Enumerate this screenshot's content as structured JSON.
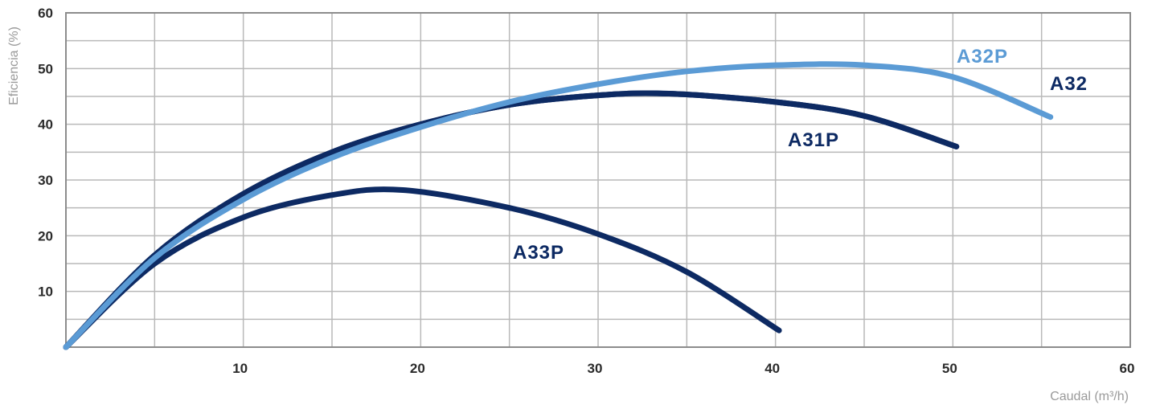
{
  "chart_data": {
    "type": "line",
    "title": "",
    "xlabel": "Caudal (m³/h)",
    "ylabel": "Eficiencia (%)",
    "xlim": [
      0,
      60
    ],
    "ylim": [
      0,
      60
    ],
    "xticks": [
      10,
      20,
      30,
      40,
      50,
      60
    ],
    "yticks": [
      10,
      20,
      30,
      40,
      50,
      60
    ],
    "xtick_labels": [
      "10",
      "20",
      "30",
      "40",
      "50",
      "60"
    ],
    "ytick_labels": [
      "10",
      "20",
      "30",
      "40",
      "50",
      "60"
    ],
    "grid": true,
    "series": [
      {
        "name": "A32P",
        "color": "#5b9bd5",
        "x": [
          0,
          5,
          10,
          15,
          20,
          25,
          30,
          35,
          40,
          45,
          50,
          55.5
        ],
        "y": [
          0,
          16,
          26.5,
          34,
          39.5,
          44,
          47.2,
          49.5,
          50.6,
          50.6,
          48.5,
          41.3
        ]
      },
      {
        "name": "A32",
        "color": "#0d2a63",
        "x": [
          0,
          5,
          10,
          15,
          20,
          25,
          30,
          34,
          40,
          45,
          50.2
        ],
        "y": [
          0,
          16.5,
          27.5,
          35,
          40,
          43.5,
          45.2,
          45.5,
          44,
          41.5,
          36
        ]
      },
      {
        "name": "A31P",
        "color": "#0d2a63",
        "x": [
          0,
          5,
          10,
          15,
          20,
          25,
          30,
          34,
          40,
          45,
          50.2
        ],
        "y": [
          0,
          16.5,
          27.5,
          35,
          40,
          43.5,
          45.2,
          45.5,
          44,
          41.5,
          36
        ]
      },
      {
        "name": "A33P",
        "color": "#0d2a63",
        "x": [
          0,
          5,
          10,
          15,
          19,
          25,
          30,
          35,
          40.2
        ],
        "y": [
          0,
          15,
          23.3,
          27.3,
          28.2,
          25,
          20.3,
          13.5,
          3
        ]
      }
    ]
  }
}
